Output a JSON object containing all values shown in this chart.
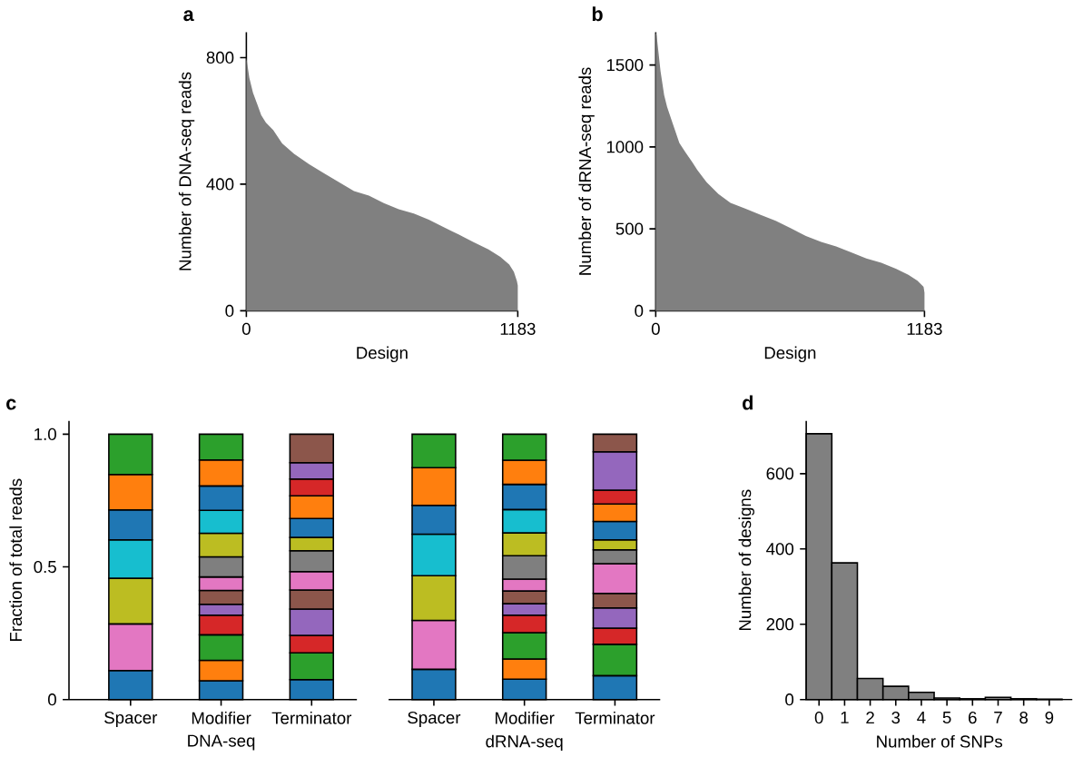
{
  "chart_data": [
    {
      "type": "area",
      "title": "a",
      "xlabel": "Design",
      "ylabel": "Number of DNA-seq reads",
      "color": "#808080",
      "x": [
        0,
        13,
        29,
        46,
        65,
        85,
        117,
        156,
        208,
        274,
        339,
        404,
        469,
        534,
        599,
        664,
        730,
        795,
        860,
        925,
        990,
        1055,
        1107,
        1146,
        1166,
        1179,
        1183
      ],
      "values": [
        800,
        736,
        689,
        656,
        618,
        595,
        571,
        529,
        496,
        463,
        434,
        406,
        378,
        364,
        340,
        321,
        307,
        288,
        264,
        241,
        217,
        194,
        170,
        146,
        123,
        94,
        80
      ],
      "xlim": [
        0,
        1183
      ],
      "xticks": [
        0,
        1183
      ],
      "ylim": [
        0,
        880
      ],
      "yticks": [
        0,
        400,
        800
      ]
    },
    {
      "type": "area",
      "title": "b",
      "xlabel": "Design",
      "ylabel": "Number of dRNA-seq reads",
      "color": "#808080",
      "x": [
        0,
        4,
        11,
        21,
        37,
        50,
        77,
        104,
        130,
        157,
        183,
        223,
        276,
        329,
        396,
        462,
        528,
        595,
        661,
        728,
        794,
        860,
        927,
        993,
        1059,
        1112,
        1152,
        1179,
        1183
      ],
      "values": [
        1700,
        1680,
        1591,
        1463,
        1317,
        1244,
        1134,
        1024,
        969,
        915,
        860,
        786,
        713,
        659,
        622,
        585,
        549,
        503,
        457,
        421,
        393,
        357,
        320,
        293,
        256,
        220,
        183,
        146,
        110
      ],
      "xlim": [
        0,
        1183
      ],
      "xticks": [
        0,
        1183
      ],
      "ylim": [
        0,
        1700
      ],
      "yticks": [
        0,
        500,
        1000,
        1500
      ]
    },
    {
      "type": "bar",
      "stacked": true,
      "title": "c",
      "ylabel": "Fraction of total reads",
      "categories": [
        "Spacer",
        "Modifier",
        "Terminator",
        "Spacer",
        "Modifier",
        "Terminator"
      ],
      "annotations": [
        "DNA-seq",
        "dRNA-seq"
      ],
      "ylim": [
        0,
        1.05
      ],
      "yticks": [
        0,
        0.5,
        {
          "value": 1,
          "label": "1.0"
        }
      ],
      "series": [
        {
          "values": [
            0.109,
            0.071,
            0.075,
            0.114,
            0.077,
            0.09
          ],
          "colors": [
            "#1f77b4",
            "#1f77b4",
            "#1f77b4",
            "#1f77b4",
            "#1f77b4",
            "#1f77b4"
          ]
        },
        {
          "values": [
            0.176,
            0.077,
            0.101,
            0.184,
            0.076,
            0.118
          ],
          "colors": [
            "#e377c2",
            "#ff7f0e",
            "#2ca02c",
            "#e377c2",
            "#ff7f0e",
            "#2ca02c"
          ]
        },
        {
          "values": [
            0.172,
            0.096,
            0.066,
            0.169,
            0.099,
            0.061
          ],
          "colors": [
            "#bcbd22",
            "#2ca02c",
            "#d62728",
            "#bcbd22",
            "#2ca02c",
            "#d62728"
          ]
        },
        {
          "values": [
            0.145,
            0.074,
            0.099,
            0.156,
            0.066,
            0.076
          ],
          "colors": [
            "#17becf",
            "#d62728",
            "#9467bd",
            "#17becf",
            "#d62728",
            "#9467bd"
          ]
        },
        {
          "values": [
            0.113,
            0.041,
            0.072,
            0.109,
            0.043,
            0.055
          ],
          "colors": [
            "#1f77b4",
            "#9467bd",
            "#8c564b",
            "#1f77b4",
            "#9467bd",
            "#8c564b"
          ]
        },
        {
          "values": [
            0.133,
            0.052,
            0.069,
            0.142,
            0.048,
            0.112
          ],
          "colors": [
            "#ff7f0e",
            "#8c564b",
            "#e377c2",
            "#ff7f0e",
            "#8c564b",
            "#e377c2"
          ]
        },
        {
          "values": [
            0.152,
            0.051,
            0.079,
            0.126,
            0.045,
            0.052
          ],
          "colors": [
            "#2ca02c",
            "#e377c2",
            "#7f7f7f",
            "#2ca02c",
            "#e377c2",
            "#7f7f7f"
          ]
        },
        {
          "values": [
            null,
            0.076,
            0.05,
            null,
            0.088,
            0.038
          ],
          "colors": [
            null,
            "#7f7f7f",
            "#bcbd22",
            null,
            "#7f7f7f",
            "#bcbd22"
          ]
        },
        {
          "values": [
            null,
            0.089,
            0.071,
            null,
            0.086,
            0.069
          ],
          "colors": [
            null,
            "#bcbd22",
            "#1f77b4",
            null,
            "#bcbd22",
            "#1f77b4"
          ]
        },
        {
          "values": [
            null,
            0.086,
            0.086,
            null,
            0.088,
            0.066
          ],
          "colors": [
            null,
            "#17becf",
            "#ff7f0e",
            null,
            "#17becf",
            "#ff7f0e"
          ]
        },
        {
          "values": [
            null,
            0.092,
            0.063,
            null,
            0.095,
            0.052
          ],
          "colors": [
            null,
            "#1f77b4",
            "#d62728",
            null,
            "#1f77b4",
            "#d62728"
          ]
        },
        {
          "values": [
            null,
            0.098,
            0.062,
            null,
            0.091,
            0.145
          ],
          "colors": [
            null,
            "#ff7f0e",
            "#9467bd",
            null,
            "#ff7f0e",
            "#9467bd"
          ]
        },
        {
          "values": [
            null,
            0.097,
            0.107,
            null,
            0.098,
            0.066
          ],
          "colors": [
            null,
            "#2ca02c",
            "#8c564b",
            null,
            "#2ca02c",
            "#8c564b"
          ]
        }
      ]
    },
    {
      "type": "histogram",
      "title": "d",
      "xlabel": "Number of SNPs",
      "ylabel": "Number of designs",
      "color": "#808080",
      "bins": [
        -0.5,
        0.5,
        1.5,
        2.5,
        3.5,
        4.5,
        5.5,
        6.5,
        7.5,
        8.5,
        9.5
      ],
      "values": [
        706,
        363,
        56,
        35,
        19,
        4,
        2,
        6,
        2,
        1
      ],
      "xlim": [
        -0.5,
        9.9
      ],
      "xticks": [
        0,
        1,
        2,
        3,
        4,
        5,
        6,
        7,
        8,
        9
      ],
      "ylim": [
        0,
        740
      ],
      "yticks": [
        0,
        200,
        400,
        600
      ]
    }
  ]
}
